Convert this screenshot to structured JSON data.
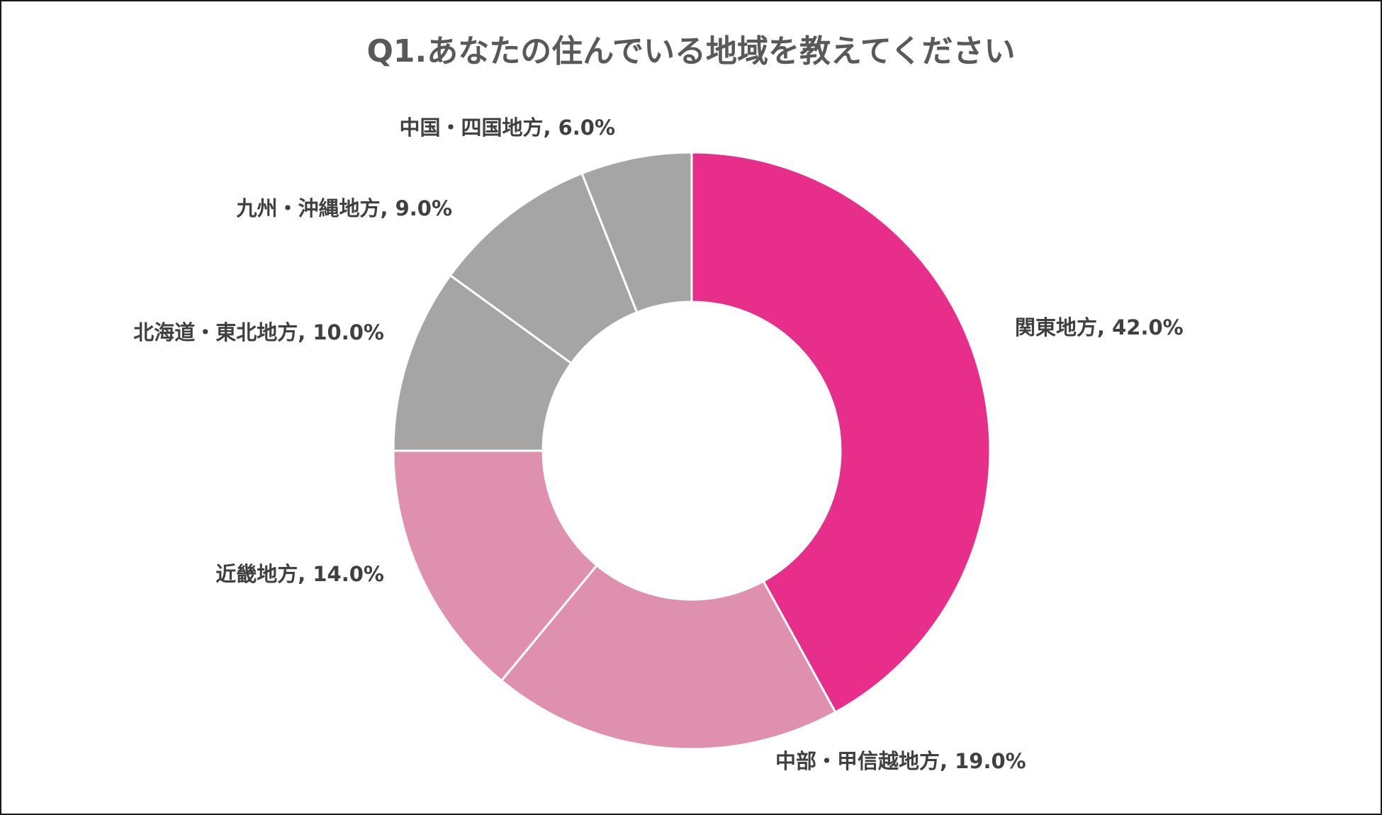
{
  "chart_data": {
    "type": "pie",
    "variant": "donut",
    "title": "Q1.あなたの住んでいる地域を教えてください",
    "slices": [
      {
        "label": "関東地方",
        "value": 42.0,
        "display": "関東地方, 42.0%",
        "color": "#E72E8A"
      },
      {
        "label": "中部・甲信越地方",
        "value": 19.0,
        "display": "中部・甲信越地方, 19.0%",
        "color": "#E090AF"
      },
      {
        "label": "近畿地方",
        "value": 14.0,
        "display": "近畿地方, 14.0%",
        "color": "#E090AF"
      },
      {
        "label": "北海道・東北地方",
        "value": 10.0,
        "display": "北海道・東北地方, 10.0%",
        "color": "#A5A5A5"
      },
      {
        "label": "九州・沖縄地方",
        "value": 9.0,
        "display": "九州・沖縄地方, 9.0%",
        "color": "#A5A5A5"
      },
      {
        "label": "中国・四国地方",
        "value": 6.0,
        "display": "中国・四国地方, 6.0%",
        "color": "#A5A5A5"
      }
    ],
    "start_angle": "12 o'clock",
    "direction": "clockwise",
    "legend": "none",
    "separator_color": "#FFFFFF"
  }
}
